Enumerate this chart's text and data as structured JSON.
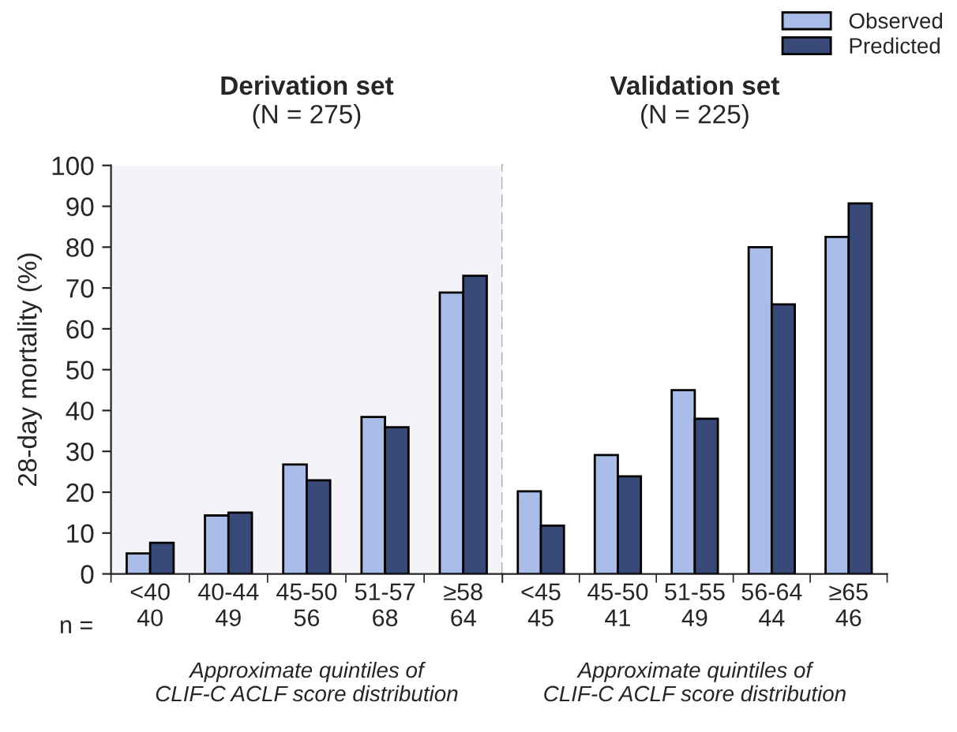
{
  "chart_data": [
    {
      "type": "bar",
      "title": "Derivation set",
      "subtitle": "(N = 275)",
      "categories": [
        "<40\n40",
        "40-44\n49",
        "45-50\n56",
        "51-57\n68",
        "≥58\n64"
      ],
      "xlabel": "Approximate quintiles of\nCLIF-C ACLF score distribution",
      "ylabel": "28-day mortality (%)",
      "annotations": [
        "n ="
      ],
      "series": [
        {
          "name": "Observed",
          "color": "#a9bde8",
          "values": [
            5,
            14.3,
            26.8,
            38.4,
            68.9
          ]
        },
        {
          "name": "Predicted",
          "color": "#3a4a78",
          "values": [
            7.6,
            15,
            22.9,
            35.9,
            73
          ]
        }
      ],
      "ylim": [
        0,
        100
      ],
      "yticks": [
        0,
        10,
        20,
        30,
        40,
        50,
        60,
        70,
        80,
        90,
        100
      ],
      "bands": [
        {
          "axis": "y",
          "from": 0,
          "to": 100,
          "color": "#f4f4f8"
        }
      ],
      "legend": "top right",
      "grid": false
    },
    {
      "type": "bar",
      "title": "Validation set",
      "subtitle": "(N = 225)",
      "categories": [
        "<45\n45",
        "45-50\n41",
        "51-55\n49",
        "56-64\n44",
        "≥65\n46"
      ],
      "xlabel": "Approximate quintiles of\nCLIF-C ACLF score distribution",
      "series": [
        {
          "name": "Observed",
          "color": "#a9bde8",
          "values": [
            20.2,
            29.1,
            45,
            80,
            82.5
          ]
        },
        {
          "name": "Predicted",
          "color": "#3a4a78",
          "values": [
            11.8,
            23.9,
            38,
            66,
            90.7
          ]
        }
      ],
      "ylim": [
        0,
        100
      ],
      "yticks": [
        0,
        10,
        20,
        30,
        40,
        50,
        60,
        70,
        80,
        90,
        100
      ],
      "tick_labels": "x",
      "grid": false
    }
  ]
}
